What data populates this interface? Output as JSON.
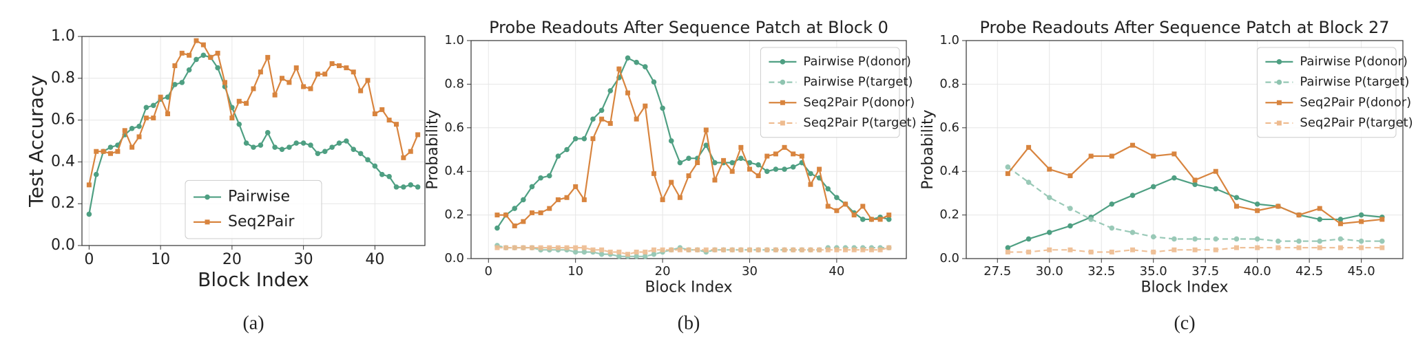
{
  "chart_data": [
    {
      "type": "line",
      "ylabel": "Test Accuracy",
      "xlabel": "Block Index",
      "caption": "(a)",
      "x": [
        0,
        1,
        2,
        3,
        4,
        5,
        6,
        7,
        8,
        9,
        10,
        11,
        12,
        13,
        14,
        15,
        16,
        17,
        18,
        19,
        20,
        21,
        22,
        23,
        24,
        25,
        26,
        27,
        28,
        29,
        30,
        31,
        32,
        33,
        34,
        35,
        36,
        37,
        38,
        39,
        40,
        41,
        42,
        43,
        44,
        45,
        46
      ],
      "series": [
        {
          "name": "Pairwise",
          "color": "#4e9f82",
          "marker": "o",
          "linestyle": "solid",
          "values": [
            0.15,
            0.34,
            0.45,
            0.47,
            0.48,
            0.53,
            0.56,
            0.57,
            0.66,
            0.67,
            0.7,
            0.71,
            0.77,
            0.78,
            0.84,
            0.89,
            0.91,
            0.9,
            0.85,
            0.76,
            0.66,
            0.58,
            0.49,
            0.47,
            0.48,
            0.54,
            0.47,
            0.46,
            0.47,
            0.49,
            0.49,
            0.48,
            0.44,
            0.45,
            0.47,
            0.49,
            0.5,
            0.46,
            0.44,
            0.41,
            0.38,
            0.34,
            0.33,
            0.28,
            0.28,
            0.29,
            0.28
          ]
        },
        {
          "name": "Seq2Pair",
          "color": "#d8843e",
          "marker": "s",
          "linestyle": "solid",
          "values": [
            0.29,
            0.45,
            0.45,
            0.44,
            0.45,
            0.55,
            0.47,
            0.52,
            0.61,
            0.61,
            0.71,
            0.63,
            0.86,
            0.92,
            0.91,
            0.98,
            0.96,
            0.9,
            0.92,
            0.78,
            0.61,
            0.69,
            0.68,
            0.75,
            0.83,
            0.9,
            0.72,
            0.8,
            0.78,
            0.85,
            0.76,
            0.75,
            0.82,
            0.82,
            0.87,
            0.86,
            0.85,
            0.83,
            0.74,
            0.79,
            0.63,
            0.65,
            0.6,
            0.58,
            0.42,
            0.45,
            0.53
          ]
        }
      ],
      "xlim": [
        -1,
        47
      ],
      "xticks": [
        0,
        10,
        20,
        30,
        40
      ],
      "ylim": [
        0,
        1
      ],
      "yticks": [
        {
          "value": 0,
          "label": "0.0"
        },
        0.2,
        0.4,
        0.6,
        0.8,
        {
          "value": 1,
          "label": "1.0"
        }
      ],
      "grid": true,
      "legend": "lower center"
    },
    {
      "type": "line",
      "title": "Probe Readouts After Sequence Patch at Block 0",
      "ylabel": "Probability",
      "xlabel": "Block Index",
      "caption": "(b)",
      "x": [
        1,
        2,
        3,
        4,
        5,
        6,
        7,
        8,
        9,
        10,
        11,
        12,
        13,
        14,
        15,
        16,
        17,
        18,
        19,
        20,
        21,
        22,
        23,
        24,
        25,
        26,
        27,
        28,
        29,
        30,
        31,
        32,
        33,
        34,
        35,
        36,
        37,
        38,
        39,
        40,
        41,
        42,
        43,
        44,
        45,
        46
      ],
      "series": [
        {
          "name": "Pairwise P(donor)",
          "color": "#4e9f82",
          "marker": "o",
          "linestyle": "solid",
          "values": [
            0.14,
            0.2,
            0.23,
            0.27,
            0.33,
            0.37,
            0.38,
            0.47,
            0.5,
            0.55,
            0.55,
            0.64,
            0.68,
            0.77,
            0.83,
            0.92,
            0.9,
            0.88,
            0.81,
            0.69,
            0.54,
            0.44,
            0.46,
            0.46,
            0.52,
            0.44,
            0.44,
            0.44,
            0.46,
            0.44,
            0.43,
            0.4,
            0.41,
            0.41,
            0.42,
            0.44,
            0.39,
            0.37,
            0.32,
            0.28,
            0.25,
            0.21,
            0.18,
            0.18,
            0.19,
            0.18
          ]
        },
        {
          "name": "Pairwise P(target)",
          "color": "#8fc4b0",
          "marker": "o",
          "linestyle": "dashed",
          "values": [
            0.06,
            0.05,
            0.05,
            0.05,
            0.05,
            0.04,
            0.04,
            0.04,
            0.04,
            0.03,
            0.03,
            0.03,
            0.02,
            0.02,
            0.01,
            0.01,
            0.01,
            0.01,
            0.02,
            0.03,
            0.04,
            0.05,
            0.04,
            0.04,
            0.03,
            0.04,
            0.04,
            0.04,
            0.04,
            0.04,
            0.04,
            0.04,
            0.04,
            0.04,
            0.04,
            0.04,
            0.04,
            0.04,
            0.05,
            0.05,
            0.05,
            0.05,
            0.05,
            0.05,
            0.05,
            0.05
          ]
        },
        {
          "name": "Seq2Pair P(donor)",
          "color": "#d8843e",
          "marker": "s",
          "linestyle": "solid",
          "values": [
            0.2,
            0.2,
            0.15,
            0.17,
            0.21,
            0.21,
            0.23,
            0.27,
            0.28,
            0.33,
            0.27,
            0.55,
            0.64,
            0.62,
            0.87,
            0.76,
            0.64,
            0.7,
            0.39,
            0.27,
            0.35,
            0.28,
            0.38,
            0.44,
            0.59,
            0.36,
            0.45,
            0.4,
            0.51,
            0.41,
            0.38,
            0.47,
            0.48,
            0.51,
            0.48,
            0.47,
            0.34,
            0.41,
            0.24,
            0.22,
            0.25,
            0.2,
            0.24,
            0.18,
            0.18,
            0.2
          ]
        },
        {
          "name": "Seq2Pair P(target)",
          "color": "#eebb8f",
          "marker": "s",
          "linestyle": "dashed",
          "values": [
            0.05,
            0.05,
            0.05,
            0.05,
            0.05,
            0.05,
            0.05,
            0.05,
            0.05,
            0.05,
            0.05,
            0.04,
            0.04,
            0.03,
            0.03,
            0.02,
            0.03,
            0.03,
            0.04,
            0.04,
            0.04,
            0.04,
            0.04,
            0.04,
            0.04,
            0.04,
            0.04,
            0.04,
            0.04,
            0.04,
            0.04,
            0.04,
            0.04,
            0.04,
            0.04,
            0.04,
            0.04,
            0.04,
            0.04,
            0.04,
            0.04,
            0.04,
            0.04,
            0.04,
            0.04,
            0.05
          ]
        }
      ],
      "xlim": [
        -2,
        48
      ],
      "xticks": [
        0,
        10,
        20,
        30,
        40
      ],
      "ylim": [
        0,
        1
      ],
      "yticks": [
        {
          "value": 0,
          "label": "0.0"
        },
        0.2,
        0.4,
        0.6,
        0.8,
        {
          "value": 1,
          "label": "1.0"
        }
      ],
      "grid": true,
      "legend": "upper right"
    },
    {
      "type": "line",
      "title": "Probe Readouts After Sequence Patch at Block 27",
      "ylabel": "Probability",
      "xlabel": "Block Index",
      "caption": "(c)",
      "x": [
        28,
        29,
        30,
        31,
        32,
        33,
        34,
        35,
        36,
        37,
        38,
        39,
        40,
        41,
        42,
        43,
        44,
        45,
        46
      ],
      "series": [
        {
          "name": "Pairwise P(donor)",
          "color": "#4e9f82",
          "marker": "o",
          "linestyle": "solid",
          "values": [
            0.05,
            0.09,
            0.12,
            0.15,
            0.19,
            0.25,
            0.29,
            0.33,
            0.37,
            0.34,
            0.32,
            0.28,
            0.25,
            0.24,
            0.2,
            0.18,
            0.18,
            0.2,
            0.19
          ]
        },
        {
          "name": "Pairwise P(target)",
          "color": "#8fc4b0",
          "marker": "o",
          "linestyle": "dashed",
          "values": [
            0.42,
            0.35,
            0.28,
            0.23,
            0.18,
            0.14,
            0.12,
            0.1,
            0.09,
            0.09,
            0.09,
            0.09,
            0.09,
            0.08,
            0.08,
            0.08,
            0.09,
            0.08,
            0.08
          ]
        },
        {
          "name": "Seq2Pair P(donor)",
          "color": "#d8843e",
          "marker": "s",
          "linestyle": "solid",
          "values": [
            0.39,
            0.51,
            0.41,
            0.38,
            0.47,
            0.47,
            0.52,
            0.47,
            0.48,
            0.36,
            0.4,
            0.24,
            0.22,
            0.24,
            0.2,
            0.23,
            0.16,
            0.17,
            0.18
          ]
        },
        {
          "name": "Seq2Pair P(target)",
          "color": "#eebb8f",
          "marker": "s",
          "linestyle": "dashed",
          "values": [
            0.03,
            0.03,
            0.04,
            0.04,
            0.03,
            0.03,
            0.04,
            0.03,
            0.04,
            0.04,
            0.04,
            0.05,
            0.05,
            0.05,
            0.05,
            0.05,
            0.05,
            0.05,
            0.05
          ]
        }
      ],
      "xlim": [
        26,
        47
      ],
      "xticks": [
        27.5,
        {
          "value": 30,
          "label": "30.0"
        },
        32.5,
        {
          "value": 35,
          "label": "35.0"
        },
        37.5,
        {
          "value": 40,
          "label": "40.0"
        },
        42.5,
        {
          "value": 45,
          "label": "45.0"
        }
      ],
      "ylim": [
        0,
        1
      ],
      "yticks": [
        {
          "value": 0,
          "label": "0.0"
        },
        0.2,
        0.4,
        0.6,
        0.8,
        {
          "value": 1,
          "label": "1.0"
        }
      ],
      "grid": true,
      "legend": "upper right"
    }
  ]
}
